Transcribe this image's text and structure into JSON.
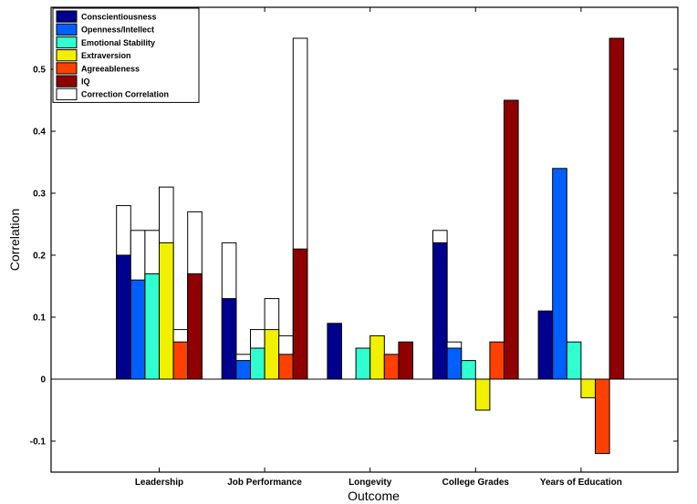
{
  "chart_data": {
    "type": "bar",
    "xlabel": "Outcome",
    "ylabel": "Correlation",
    "ylim": [
      -0.15,
      0.6
    ],
    "yticks": [
      -0.1,
      0,
      0.1,
      0.2,
      0.3,
      0.4,
      0.5
    ],
    "ytick_labels": [
      "-0.1",
      "0",
      "0.1",
      "0.2",
      "0.3",
      "0.4",
      "0.5"
    ],
    "categories": [
      "Leadership",
      "Job Performance",
      "Longevity",
      "College Grades",
      "Years of Education"
    ],
    "legend_position": "top-left",
    "series": [
      {
        "name": "Conscientiousness",
        "color": "#00008f",
        "values": [
          0.2,
          0.13,
          0.09,
          0.22,
          0.11
        ]
      },
      {
        "name": "Openness/Intellect",
        "color": "#0060ff",
        "values": [
          0.16,
          0.03,
          null,
          0.05,
          0.34
        ]
      },
      {
        "name": "Emotional Stability",
        "color": "#30ffd0",
        "values": [
          0.17,
          0.05,
          0.05,
          0.03,
          0.06
        ]
      },
      {
        "name": "Extraversion",
        "color": "#f0f000",
        "values": [
          0.22,
          0.08,
          0.07,
          -0.05,
          -0.03
        ]
      },
      {
        "name": "Agreeableness",
        "color": "#ff4000",
        "values": [
          0.06,
          0.04,
          0.04,
          0.06,
          -0.12
        ]
      },
      {
        "name": "IQ",
        "color": "#8f0000",
        "values": [
          0.17,
          0.21,
          0.06,
          0.45,
          0.55
        ]
      }
    ],
    "correction": {
      "name": "Correction Correlation",
      "color": "#ffffff",
      "values": [
        [
          0.28,
          0.24,
          0.24,
          0.31,
          0.08,
          0.27
        ],
        [
          0.22,
          0.04,
          0.08,
          0.13,
          0.07,
          0.55
        ],
        [
          null,
          null,
          null,
          null,
          null,
          null
        ],
        [
          0.24,
          0.06,
          null,
          null,
          null,
          null
        ],
        [
          null,
          null,
          null,
          null,
          null,
          null
        ]
      ]
    }
  }
}
